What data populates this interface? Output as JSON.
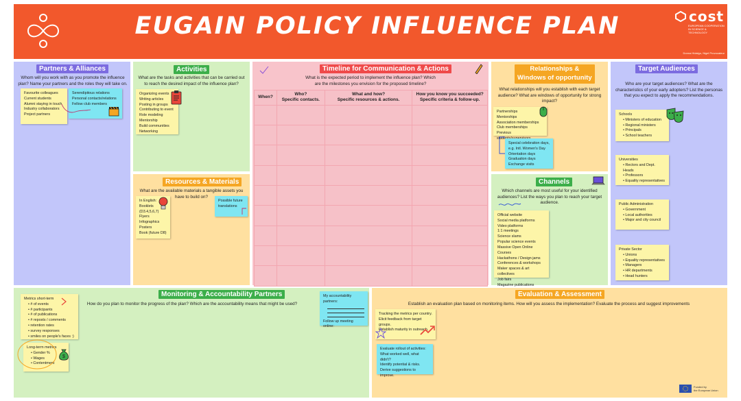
{
  "header": {
    "title": "EUGAIN POLICY INFLUENCE PLAN",
    "cost_logo": "cost",
    "cost_subtitle": [
      "EUROPEAN COOPERATION",
      "IN SCIENCE & TECHNOLOGY"
    ],
    "credit": "Donna Hidalgo, Nigel Provocateur"
  },
  "colors": {
    "header_bg": "#f2582c",
    "partners_bg": "#c2c6fa",
    "activities_bg": "#d4f0c0",
    "resources_bg": "#ffe0a0",
    "timeline_bg": "#f8c4cb",
    "relationships_bg": "#ffe0a0",
    "channels_bg": "#d4f0c0",
    "target_bg": "#c2c6fa",
    "monitoring_bg": "#d4f0c0",
    "evaluation_bg": "#ffe0a0"
  },
  "partners": {
    "title": "Partners & Alliances",
    "desc": "Whom will you work with as you promote the influence plan? Name your partners and the roles they will take on.",
    "note1": [
      "Favourite colleagues",
      "Current students",
      "Alumni staying in touch",
      "Industry collaborators",
      "Project partners"
    ],
    "note2": [
      "Serendipitous relations",
      "Personal contacts/relations",
      "Fellow club members"
    ]
  },
  "activities": {
    "title": "Activities",
    "desc": "What are the tasks and activities that can be carried out to reach the desired impact of the influence plan?",
    "note": [
      "Organizing events",
      "Writing articles",
      "Posting in groups",
      "Contributing to event",
      "Role modeling",
      "Mentorship",
      "Build communities",
      "Networking"
    ]
  },
  "resources": {
    "title": "Resources & Materials",
    "desc": "What are the available materials a tangible assets you have to build on?",
    "note1": [
      "In English:",
      "Booklets",
      "(D3.4,5,6,7)",
      "Flyers",
      "Infographics",
      "Posters",
      "Book (future D8)"
    ],
    "note2": [
      "Possible future",
      "translations"
    ]
  },
  "timeline": {
    "title": "Timeline for Communication & Actions",
    "desc": "What is the expected period to implement the influence plan? Which are the milestones you envision for the proposed timeline?",
    "col_when": "When?",
    "col_who": [
      "Who?",
      "Specific contacts."
    ],
    "col_what": [
      "What and how?",
      "Specific resources & actions."
    ],
    "col_success": [
      "How you know you succeeded?",
      "Specific criteria & follow-up."
    ]
  },
  "relationships": {
    "title": [
      "Relationships &",
      "Windows of opportunity"
    ],
    "desc": "What relationships will you establish with each target audience? What are windows of opportunity for strong impact?",
    "note1": [
      "Partnerships",
      "Mentorships",
      "Association memberships",
      "Club memberships",
      "Previous students/supervisors."
    ],
    "note2": [
      "Special celebration days,",
      "e.g. Intl. Women's Day",
      "Orientation days",
      "Graduation days",
      "Exchange visits"
    ]
  },
  "channels": {
    "title": "Channels",
    "desc": "Which channels are most useful for your identified audiences? List the ways you plan to reach your target audience.",
    "note": [
      "Official website",
      "Social media platforms",
      "Video platforms",
      "1:1 meetings",
      "Science slams",
      "Popular science events",
      "Massive Open Online Courses",
      "Hackathons / Design jams",
      "Conferences & workshops",
      "Maker spaces & art collectives",
      "Job fairs",
      "Magazine publications"
    ]
  },
  "target": {
    "title": "Target Audiences",
    "desc": "Who are your target audiences? What are the characteristics of your early adopters? List the personas that you expect to apply the recommendations.",
    "schools": {
      "heading": "Schools",
      "items": [
        "Ministers of education",
        "Regional ministers",
        "Principals",
        "School teachers"
      ]
    },
    "universities": {
      "heading": "Universities",
      "items": [
        "Rectors and Dept. Heads",
        "Professors",
        "Equality representatives"
      ]
    },
    "public": {
      "heading": "Public Administration",
      "items": [
        "Government",
        "Local authorities",
        "Major and city council"
      ]
    },
    "private": {
      "heading": "Private Sector",
      "items": [
        "Unions",
        "Equality representatives",
        "Managers",
        "HR departments",
        "Head hunters"
      ]
    }
  },
  "monitoring": {
    "title": "Monitoring & Accountability Partners",
    "desc": "How do you plan to monitor the progress of the plan? Which are the accountability means that might be used?",
    "short_heading": "Metrics short-term",
    "short_items": [
      "# of events",
      "# participants",
      "# of publications",
      "# reposts / comments",
      "retention rates",
      "survey responses",
      "smiles on people's faces :)"
    ],
    "long_heading": "Long-term metrics",
    "long_items": [
      "Gender %",
      "Wages",
      "Contentment"
    ],
    "partners_label": "My accountability partners:",
    "followup_label": "Follow up meeting online:"
  },
  "evaluation": {
    "title": "Evaluation & Assessment",
    "desc": "Establish an evaluation plan based on monitoring items. How will you assess the implementation? Evaluate the process and suggest improvements",
    "note1": [
      "Tracking the metrics per country.",
      "Elicit feedback from target groups.",
      "Establish maturity in outreach."
    ],
    "note2": [
      "Evaluate rollout of activities:",
      "What worked well, what didn't?",
      "Identify potential & risks.",
      "Derive suggestions to improve."
    ],
    "eu_label": [
      "Funded by",
      "the European Union"
    ]
  }
}
